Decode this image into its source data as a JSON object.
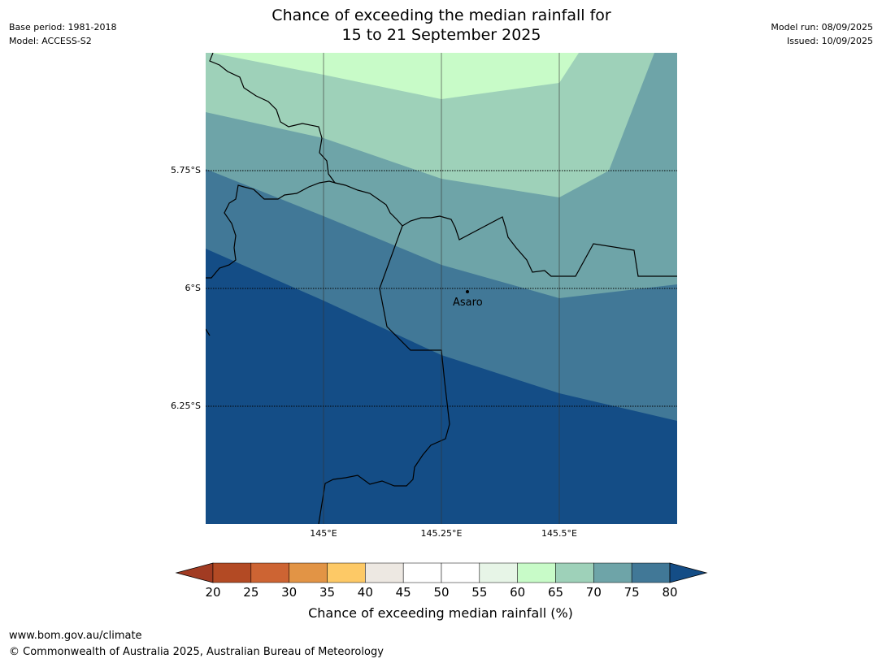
{
  "header": {
    "base_period": "Base period: 1981-2018",
    "model": "Model: ACCESS-S2",
    "model_run": "Model run: 08/09/2025",
    "issued": "Issued: 10/09/2025",
    "title_line1": "Chance of exceeding the median rainfall for",
    "title_line2": "15 to 21 September 2025"
  },
  "map": {
    "lat_labels": [
      "5.75°S",
      "6°S",
      "6.25°S"
    ],
    "lon_labels": [
      "145°E",
      "145.25°E",
      "145.5°E"
    ],
    "place": {
      "name": "Asaro"
    },
    "zone_colors": {
      "60-65": "#c8fbc8",
      "65-70": "#9ed1b9",
      "70-75": "#6ea4a8",
      "75-80": "#417897",
      "80+": "#144d86"
    }
  },
  "colorbar": {
    "ticks": [
      "20",
      "25",
      "30",
      "35",
      "40",
      "45",
      "50",
      "55",
      "60",
      "65",
      "70",
      "75",
      "80"
    ],
    "colors": [
      "#a13b22",
      "#b34a24",
      "#cd6433",
      "#e29445",
      "#fdc966",
      "#ede8e2",
      "#ffffff",
      "#ffffff",
      "#e7f5e7",
      "#c8fbc8",
      "#9ed1b9",
      "#6ea4a8",
      "#417897",
      "#144d86"
    ],
    "label": "Chance of exceeding median rainfall (%)"
  },
  "footer": {
    "url": "www.bom.gov.au/climate",
    "copyright": "© Commonwealth of Australia 2025, Australian Bureau of Meteorology"
  }
}
